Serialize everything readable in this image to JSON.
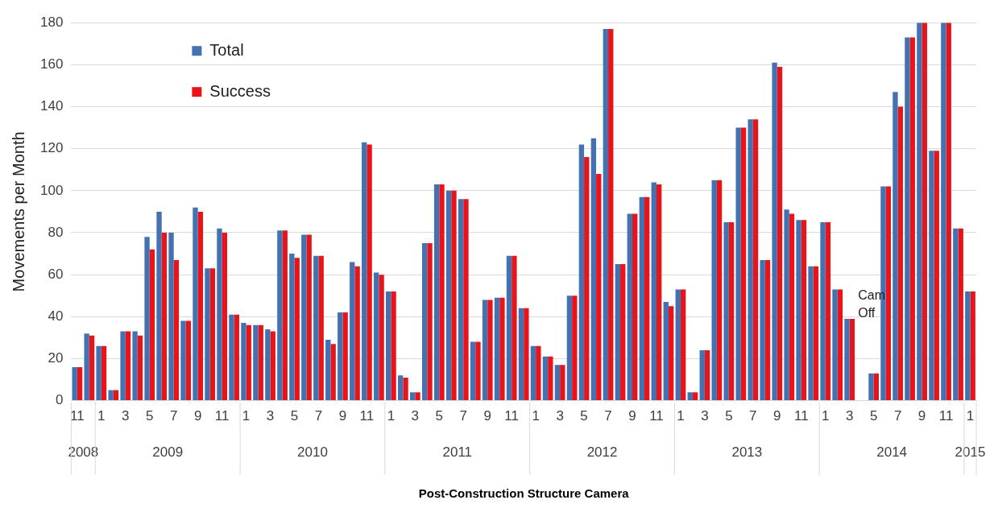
{
  "chart_data": {
    "type": "bar",
    "ylabel": "Movements per Month",
    "categories": [
      "11",
      null,
      "1",
      null,
      "3",
      null,
      "5",
      null,
      "7",
      null,
      "9",
      null,
      "11",
      null,
      "1",
      null,
      "3",
      null,
      "5",
      null,
      "7",
      null,
      "9",
      null,
      "11",
      null,
      "1",
      null,
      "3",
      null,
      "5",
      null,
      "7",
      null,
      "9",
      null,
      "11",
      null,
      "1",
      null,
      "3",
      null,
      "5",
      null,
      "7",
      null,
      "9",
      null,
      "11",
      null,
      "1",
      null,
      "3",
      null,
      "5",
      null,
      "7",
      null,
      "9",
      null,
      "11",
      null,
      "1",
      null,
      "3",
      null,
      "5",
      null,
      "7",
      null,
      "9",
      null,
      "11",
      null,
      "1"
    ],
    "series": [
      {
        "name": "Total",
        "color": "#4472b0",
        "values": [
          16,
          32,
          26,
          5,
          33,
          33,
          78,
          90,
          80,
          38,
          92,
          63,
          82,
          41,
          37,
          36,
          34,
          81,
          70,
          79,
          69,
          29,
          42,
          66,
          123,
          61,
          52,
          12,
          4,
          75,
          103,
          100,
          96,
          28,
          48,
          49,
          69,
          44,
          26,
          21,
          17,
          50,
          122,
          125,
          177,
          65,
          89,
          97,
          104,
          47,
          53,
          4,
          24,
          105,
          85,
          130,
          134,
          67,
          161,
          91,
          86,
          64,
          85,
          53,
          39,
          null,
          13,
          102,
          147,
          173,
          180,
          119,
          180,
          82,
          52
        ]
      },
      {
        "name": "Success",
        "color": "#e8141a",
        "values": [
          16,
          31,
          26,
          5,
          33,
          31,
          72,
          80,
          67,
          38,
          90,
          63,
          80,
          41,
          36,
          36,
          33,
          81,
          68,
          79,
          69,
          27,
          42,
          64,
          122,
          60,
          52,
          11,
          4,
          75,
          103,
          100,
          96,
          28,
          48,
          49,
          69,
          44,
          26,
          21,
          17,
          50,
          116,
          108,
          177,
          65,
          89,
          97,
          103,
          45,
          53,
          4,
          24,
          105,
          85,
          130,
          134,
          67,
          159,
          89,
          86,
          64,
          85,
          53,
          39,
          null,
          13,
          102,
          140,
          173,
          180,
          119,
          180,
          82,
          52
        ]
      }
    ],
    "ylim": [
      0,
      180
    ],
    "yticks": [
      0,
      20,
      40,
      60,
      80,
      100,
      120,
      140,
      160,
      180
    ],
    "grid": "y",
    "legend": "top left",
    "annotations": [
      "2008",
      "2009",
      "2010",
      "2011",
      "2012",
      "2013",
      "2014",
      "2015",
      "Cam Off",
      "Post-Construction Structure Camera"
    ]
  }
}
